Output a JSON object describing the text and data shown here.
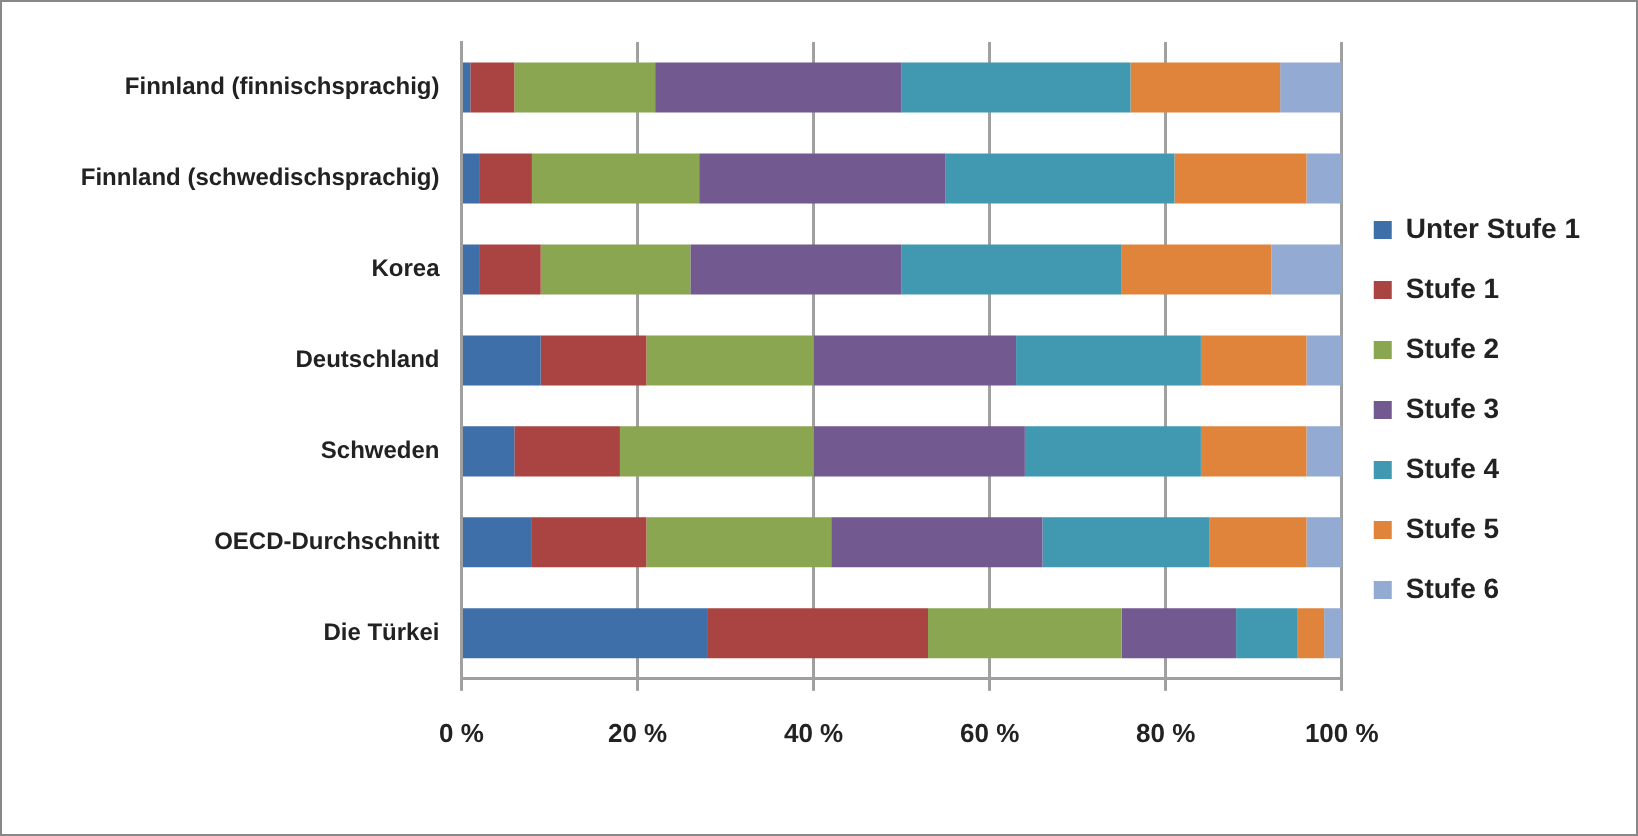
{
  "chart_data": {
    "type": "bar",
    "orientation": "horizontal",
    "stacked": true,
    "categories": [
      "Finnland (finnischsprachig)",
      "Finnland (schwedischsprachig)",
      "Korea",
      "Deutschland",
      "Schweden",
      "OECD-Durchschnitt",
      "Die Türkei"
    ],
    "series": [
      {
        "name": "Unter Stufe 1",
        "color": "#3f6fa8",
        "values": [
          1,
          2,
          2,
          9,
          6,
          8,
          28
        ]
      },
      {
        "name": "Stufe 1",
        "color": "#a94442",
        "values": [
          5,
          6,
          7,
          12,
          12,
          13,
          25
        ]
      },
      {
        "name": "Stufe 2",
        "color": "#8aa650",
        "values": [
          16,
          19,
          17,
          19,
          22,
          21,
          22
        ]
      },
      {
        "name": "Stufe 3",
        "color": "#72598f",
        "values": [
          28,
          28,
          24,
          23,
          24,
          24,
          13
        ]
      },
      {
        "name": "Stufe 4",
        "color": "#4099b0",
        "values": [
          26,
          26,
          25,
          21,
          20,
          19,
          7
        ]
      },
      {
        "name": "Stufe 5",
        "color": "#e0843c",
        "values": [
          17,
          15,
          17,
          12,
          12,
          11,
          3
        ]
      },
      {
        "name": "Stufe 6",
        "color": "#93aad3",
        "values": [
          7,
          4,
          8,
          4,
          4,
          4,
          2
        ]
      }
    ],
    "xlim": [
      0,
      100
    ],
    "xticks": [
      {
        "value": 0,
        "label": "0 %"
      },
      {
        "value": 20,
        "label": "20 %"
      },
      {
        "value": 40,
        "label": "40 %"
      },
      {
        "value": 60,
        "label": "60 %"
      },
      {
        "value": 80,
        "label": "80 %"
      },
      {
        "value": 100,
        "label": "100 %"
      }
    ],
    "grid": "x",
    "legend": "right"
  }
}
